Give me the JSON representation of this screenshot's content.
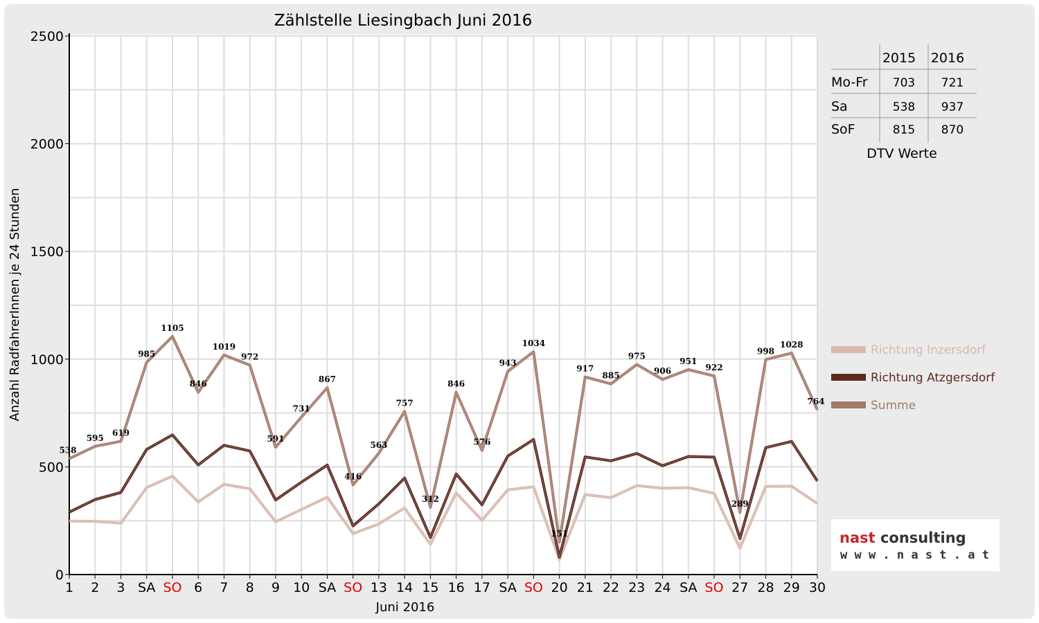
{
  "chart_data": {
    "type": "line",
    "title": "Zählstelle Liesingbach Juni 2016",
    "xlabel": "Juni 2016",
    "ylabel": "Anzahl RadfahrerInnen je 24 Stunden",
    "ylim": [
      0,
      2500
    ],
    "yticks": [
      0,
      500,
      1000,
      1500,
      2000,
      2500
    ],
    "grid": true,
    "legend_position": "right",
    "categories": [
      "1",
      "2",
      "3",
      "SA",
      "SO",
      "6",
      "7",
      "8",
      "9",
      "10",
      "SA",
      "SO",
      "13",
      "14",
      "15",
      "16",
      "17",
      "SA",
      "SO",
      "20",
      "21",
      "22",
      "23",
      "24",
      "SA",
      "SO",
      "27",
      "28",
      "29",
      "30"
    ],
    "weekend_categories_red": [
      "SO"
    ],
    "series": [
      {
        "name": "Richtung Inzersdorf",
        "color": "#d7b9ad",
        "values": [
          248,
          247,
          238,
          404,
          457,
          337,
          419,
          398,
          245,
          302,
          359,
          190,
          235,
          309,
          140,
          379,
          252,
          393,
          407,
          70,
          371,
          357,
          413,
          401,
          403,
          377,
          122,
          409,
          410,
          330
        ]
      },
      {
        "name": "Richtung Atzgersdorf",
        "color": "#5c2a20",
        "values": [
          290,
          348,
          381,
          581,
          648,
          509,
          600,
          574,
          346,
          429,
          508,
          226,
          328,
          448,
          172,
          467,
          324,
          550,
          627,
          81,
          546,
          528,
          562,
          505,
          548,
          545,
          167,
          589,
          618,
          434
        ]
      },
      {
        "name": "Summe",
        "color": "#a2796a",
        "values": [
          538,
          595,
          619,
          985,
          1105,
          846,
          1019,
          972,
          591,
          731,
          867,
          416,
          563,
          757,
          312,
          846,
          576,
          943,
          1034,
          151,
          917,
          885,
          975,
          906,
          951,
          922,
          289,
          998,
          1028,
          764
        ]
      }
    ]
  },
  "stats_table": {
    "headers": [
      "",
      "2015",
      "2016"
    ],
    "rows": [
      {
        "label": "Mo-Fr",
        "v2015": "703",
        "v2016": "721"
      },
      {
        "label": "Sa",
        "v2015": "538",
        "v2016": "937"
      },
      {
        "label": "SoF",
        "v2015": "815",
        "v2016": "870"
      }
    ],
    "caption": "DTV Werte"
  },
  "logo": {
    "name_part1": "nast",
    "name_part2": " consulting",
    "url": "w w w . n a s t . a t",
    "color_part1": "#c0272d",
    "color_part2": "#333333"
  }
}
